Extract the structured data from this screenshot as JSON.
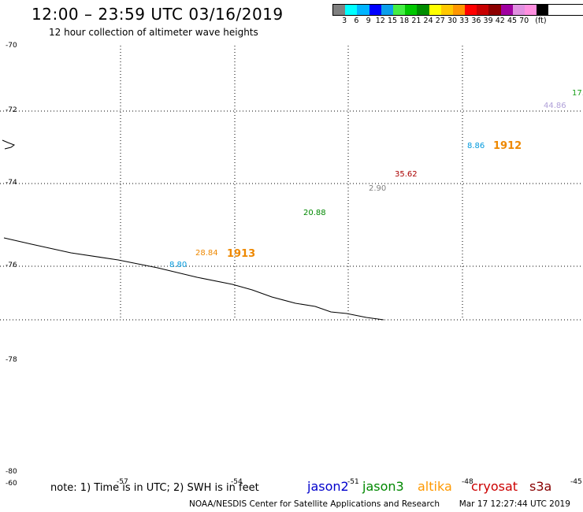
{
  "header": {
    "title": "12:00 – 23:59 UTC 03/16/2019",
    "subtitle": "12 hour collection of altimeter wave heights"
  },
  "legend": {
    "colors": [
      "#808080",
      "#00ffff",
      "#00b4ff",
      "#0000ff",
      "#0a9eeb",
      "#44ee44",
      "#00c800",
      "#008c00",
      "#ffff00",
      "#ffc800",
      "#ff9600",
      "#ff0000",
      "#c80000",
      "#8c0000",
      "#a000a0",
      "#e090e0",
      "#ff90e0",
      "#000000"
    ],
    "labels": [
      "3",
      "6",
      "9",
      "12",
      "15",
      "18",
      "21",
      "24",
      "27",
      "30",
      "33",
      "36",
      "39",
      "42",
      "45",
      "70",
      "(ft)"
    ]
  },
  "map": {
    "lat_labels": [
      "-70",
      "-72",
      "-74",
      "-76",
      "-78",
      "-80",
      "-60"
    ],
    "wave_labels": [
      {
        "text": "17.",
        "color": "#1aa01a"
      },
      {
        "text": "44.86",
        "color": "#b0a0d8"
      },
      {
        "text": "8.86",
        "color": "#0099dd"
      },
      {
        "text": "35.62",
        "color": "#aa0000"
      },
      {
        "text": "2.90",
        "color": "#808080"
      },
      {
        "text": "20.88",
        "color": "#008800"
      },
      {
        "text": "28.84",
        "color": "#ee8800"
      },
      {
        "text": "8.80",
        "color": "#0099dd"
      }
    ],
    "pass_labels": [
      {
        "text": "1912",
        "color": "#ee8800"
      },
      {
        "text": "1913",
        "color": "#ee8800"
      }
    ],
    "lon_labels": [
      "-57",
      "-54",
      "-51",
      "-48",
      "-45"
    ]
  },
  "footer": {
    "note": "note: 1) Time is in UTC; 2) SWH is in feet",
    "satellites": [
      {
        "name": "jason2",
        "color": "#0000cc"
      },
      {
        "name": "jason3",
        "color": "#008800"
      },
      {
        "name": "altika",
        "color": "#ff9900"
      },
      {
        "name": "cryosat",
        "color": "#cc0000"
      },
      {
        "name": "s3a",
        "color": "#880000"
      }
    ],
    "credit": "NOAA/NESDIS Center for Satellite Applications and Research",
    "timestamp": "Mar 17 12:27:44 UTC 2019"
  }
}
